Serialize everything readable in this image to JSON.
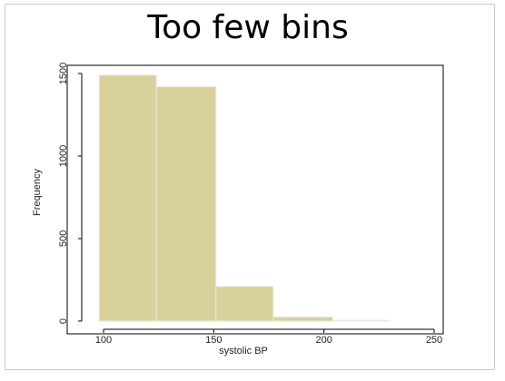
{
  "slide": {
    "title": "Too few bins"
  },
  "chart_data": {
    "type": "bar",
    "subtype": "histogram",
    "xlabel": "systolic BP",
    "ylabel": "Frequency",
    "xlim": [
      75,
      250
    ],
    "ylim": [
      0,
      1550
    ],
    "x_ticks": [
      100,
      150,
      200,
      250
    ],
    "y_ticks": [
      0,
      500,
      1000,
      1500
    ],
    "bins": [
      {
        "start": 98,
        "end": 124,
        "value": 1490
      },
      {
        "start": 124,
        "end": 151,
        "value": 1420
      },
      {
        "start": 151,
        "end": 177,
        "value": 210
      },
      {
        "start": 177,
        "end": 204,
        "value": 25
      },
      {
        "start": 204,
        "end": 230,
        "value": 5
      }
    ],
    "bar_color": "#d8d19b",
    "bar_edge": "#eeeadb",
    "grid": false
  }
}
